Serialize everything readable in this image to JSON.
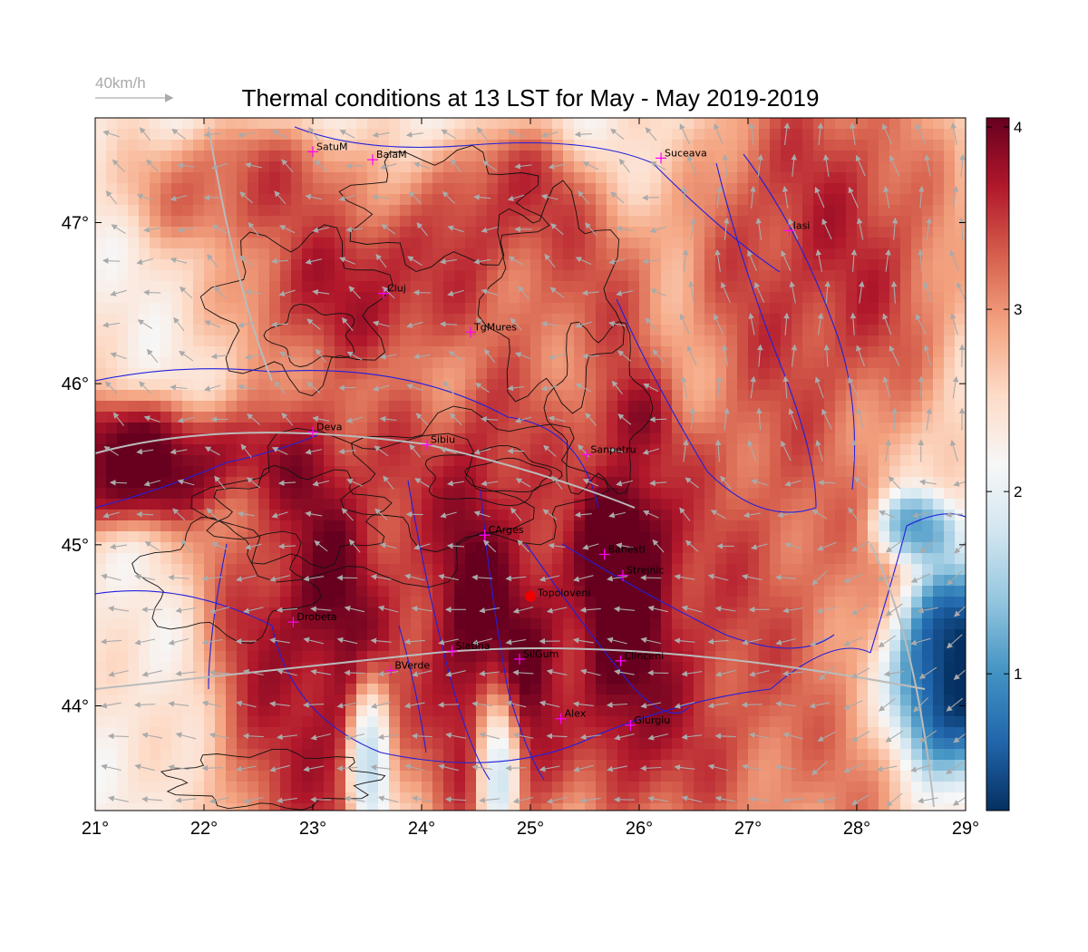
{
  "title": "Thermal conditions at 13 LST for May - May  2019-2019",
  "wind_scale": {
    "label": "40km/h",
    "color": "#aaaaaa"
  },
  "map": {
    "lon_range": [
      21,
      29
    ],
    "lat_range": [
      43.35,
      47.65
    ],
    "lon_ticks": [
      {
        "value": 21,
        "label": "21°"
      },
      {
        "value": 22,
        "label": "22°"
      },
      {
        "value": 23,
        "label": "23°"
      },
      {
        "value": 24,
        "label": "24°"
      },
      {
        "value": 25,
        "label": "25°"
      },
      {
        "value": 26,
        "label": "26°"
      },
      {
        "value": 27,
        "label": "27°"
      },
      {
        "value": 28,
        "label": "28°"
      },
      {
        "value": 29,
        "label": "29°"
      }
    ],
    "lat_ticks": [
      {
        "value": 44,
        "label": "44°"
      },
      {
        "value": 45,
        "label": "45°"
      },
      {
        "value": 46,
        "label": "46°"
      },
      {
        "value": 47,
        "label": "47°"
      }
    ],
    "colors": {
      "river": "#2020dd",
      "contour": "#111111",
      "arrow": "#aaaaaa",
      "marker": "#ff00ff",
      "highlight": "#ee0000",
      "lake": "#20d0d0"
    }
  },
  "colorbar": {
    "range": [
      0.25,
      4.05
    ],
    "ticks": [
      {
        "value": 1,
        "label": "1"
      },
      {
        "value": 2,
        "label": "2"
      },
      {
        "value": 3,
        "label": "3"
      },
      {
        "value": 4,
        "label": "4"
      }
    ],
    "colormap": [
      "#053061",
      "#2166ac",
      "#4393c3",
      "#92c5de",
      "#d1e5f0",
      "#f7f7f7",
      "#fddbc7",
      "#f4a582",
      "#d6604d",
      "#b2182b",
      "#67001f"
    ]
  },
  "cities": [
    {
      "name": "SatuM",
      "lon": 23.0,
      "lat": 47.44
    },
    {
      "name": "BaiaM",
      "lon": 23.55,
      "lat": 47.39
    },
    {
      "name": "Suceava",
      "lon": 26.2,
      "lat": 47.4
    },
    {
      "name": "Iasi",
      "lon": 27.38,
      "lat": 46.95
    },
    {
      "name": "Cluj",
      "lon": 23.65,
      "lat": 46.56
    },
    {
      "name": "TgMures",
      "lon": 24.45,
      "lat": 46.32
    },
    {
      "name": "Deva",
      "lon": 23.0,
      "lat": 45.7
    },
    {
      "name": "Sibiu",
      "lon": 24.05,
      "lat": 45.62
    },
    {
      "name": "Sanpetru",
      "lon": 25.52,
      "lat": 45.56
    },
    {
      "name": "CArges",
      "lon": 24.58,
      "lat": 45.06
    },
    {
      "name": "Banesti",
      "lon": 25.68,
      "lat": 44.94
    },
    {
      "name": "Strejnic",
      "lon": 25.85,
      "lat": 44.81
    },
    {
      "name": "Drobeta",
      "lon": 22.82,
      "lat": 44.52
    },
    {
      "name": "Slatina",
      "lon": 24.28,
      "lat": 44.34
    },
    {
      "name": "SilGum",
      "lon": 24.9,
      "lat": 44.29
    },
    {
      "name": "Clinceni",
      "lon": 25.83,
      "lat": 44.28
    },
    {
      "name": "BVerde",
      "lon": 23.72,
      "lat": 44.22
    },
    {
      "name": "Alex",
      "lon": 25.28,
      "lat": 43.92
    },
    {
      "name": "Giurgiu",
      "lon": 25.92,
      "lat": 43.88
    }
  ],
  "highlight_city": {
    "name": "Topoloveni",
    "lon": 25.0,
    "lat": 44.68
  }
}
